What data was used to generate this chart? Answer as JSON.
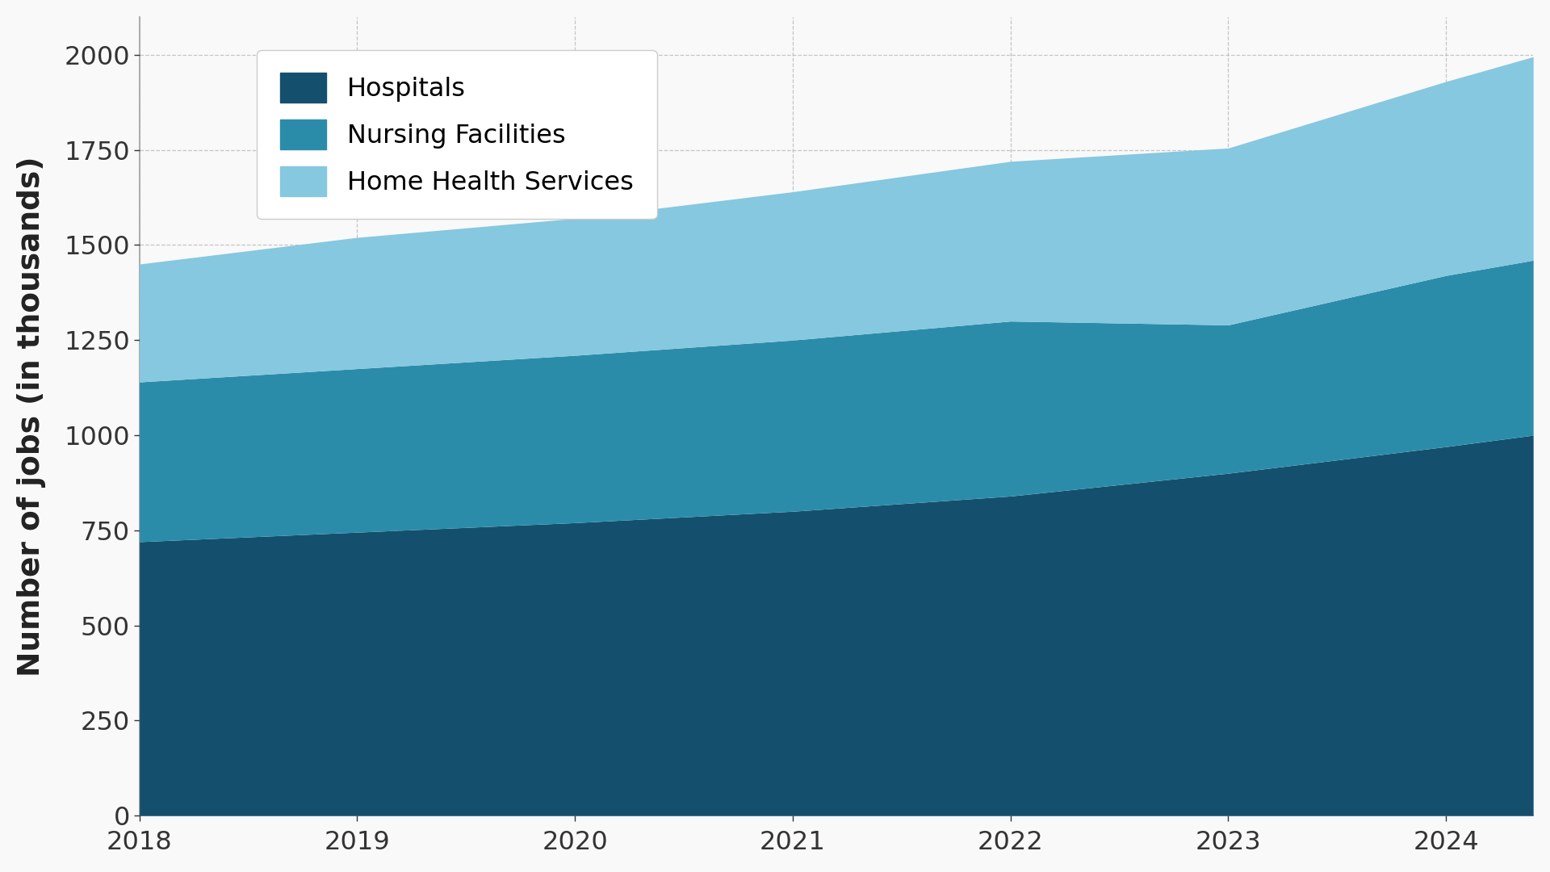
{
  "years": [
    2018,
    2019,
    2020,
    2021,
    2022,
    2023,
    2024,
    2024.4
  ],
  "hospitals": [
    720,
    745,
    770,
    800,
    840,
    900,
    970,
    1000
  ],
  "nursing_facilities": [
    420,
    430,
    440,
    450,
    460,
    390,
    450,
    460
  ],
  "home_health_services": [
    310,
    345,
    360,
    390,
    420,
    465,
    510,
    535
  ],
  "colors": {
    "hospitals": "#14506e",
    "nursing_facilities": "#2b8caa",
    "home_health_services": "#85c8e0"
  },
  "ylabel": "Number of jobs (in thousands)",
  "ylim": [
    0,
    2100
  ],
  "yticks": [
    0,
    250,
    500,
    750,
    1000,
    1250,
    1500,
    1750,
    2000
  ],
  "background_color": "#f9f9f9",
  "legend_labels": [
    "Hospitals",
    "Nursing Facilities",
    "Home Health Services"
  ]
}
